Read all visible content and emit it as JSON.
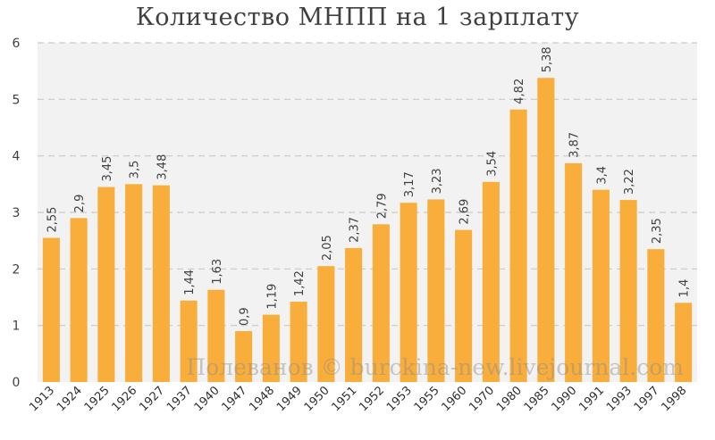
{
  "chart_data": {
    "type": "bar",
    "title": "Количество МНПП на 1 зарплату",
    "xlabel": "",
    "ylabel": "",
    "ylim": [
      0,
      6
    ],
    "yticks": [
      0,
      1,
      2,
      3,
      4,
      5,
      6
    ],
    "grid": true,
    "legend": "none",
    "bar_color": "#F9AE3B",
    "plot_background": "#F2F2F2",
    "categories": [
      "1913",
      "1924",
      "1925",
      "1926",
      "1927",
      "1937",
      "1940",
      "1947",
      "1948",
      "1949",
      "1950",
      "1951",
      "1952",
      "1953",
      "1955",
      "1960",
      "1970",
      "1980",
      "1985",
      "1990",
      "1991",
      "1993",
      "1997",
      "1998"
    ],
    "values": [
      2.55,
      2.9,
      3.45,
      3.5,
      3.48,
      1.44,
      1.63,
      0.9,
      1.19,
      1.42,
      2.05,
      2.37,
      2.79,
      3.17,
      3.23,
      2.69,
      3.54,
      4.82,
      5.38,
      3.87,
      3.4,
      3.22,
      2.35,
      1.4
    ],
    "data_labels": [
      "2,55",
      "2,9",
      "3,45",
      "3,5",
      "3,48",
      "1,44",
      "1,63",
      "0,9",
      "1,19",
      "1,42",
      "2,05",
      "2,37",
      "2,79",
      "3,17",
      "3,23",
      "2,69",
      "3,54",
      "4,82",
      "5,38",
      "3,87",
      "3,4",
      "3,22",
      "2,35",
      "1,4"
    ],
    "watermark": "Полеванов © burckina-new.livejournal.com"
  }
}
